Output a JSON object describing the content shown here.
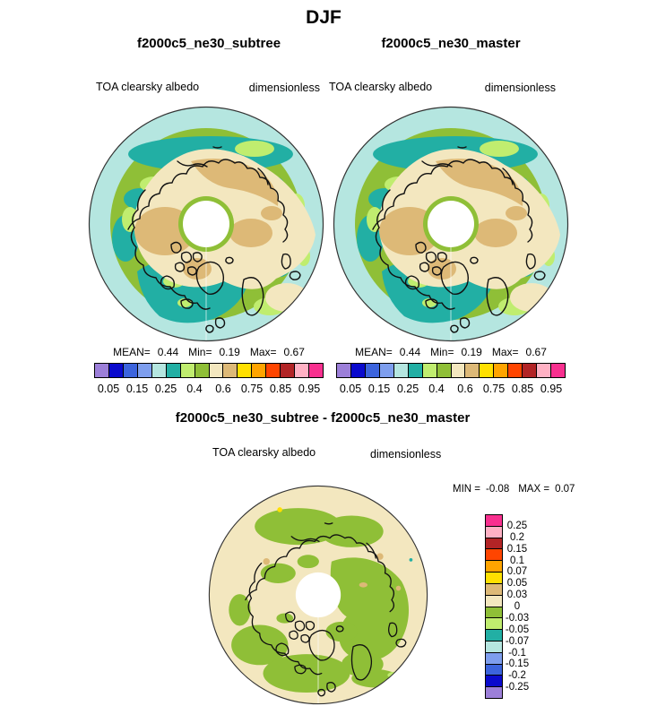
{
  "figure_title": "DJF",
  "top_panels": [
    {
      "title": "f2000c5_ne30_subtree",
      "var_label": "TOA clearsky albedo",
      "units_label": "dimensionless",
      "stats": {
        "mean_label": "MEAN=",
        "mean_value": "0.44",
        "min_label": "Min=",
        "min_value": "0.19",
        "max_label": "Max=",
        "max_value": "0.67"
      }
    },
    {
      "title": "f2000c5_ne30_master",
      "var_label": "TOA clearsky albedo",
      "units_label": "dimensionless",
      "stats": {
        "mean_label": "MEAN=",
        "mean_value": "0.44",
        "min_label": "Min=",
        "min_value": "0.19",
        "max_label": "Max=",
        "max_value": "0.67"
      }
    }
  ],
  "albedo_colorbar": {
    "colors": [
      "#9C7FD9",
      "#0A0ACD",
      "#3C64DD",
      "#7E9EEE",
      "#B5E6E0",
      "#22AFA4",
      "#C0ED6F",
      "#8FBF37",
      "#F3E7BF",
      "#DDB977",
      "#FFE000",
      "#FFA400",
      "#FF4500",
      "#B22426",
      "#FFB1C4",
      "#F8308F"
    ],
    "tick_labels": [
      "0.05",
      "0.15",
      "0.25",
      "0.4",
      "0.6",
      "0.75",
      "0.85",
      "0.95"
    ],
    "tick_positions": [
      1,
      3,
      5,
      7,
      9,
      11,
      13,
      15
    ]
  },
  "diff_panel": {
    "title": "f2000c5_ne30_subtree - f2000c5_ne30_master",
    "var_label": "TOA clearsky albedo",
    "units_label": "dimensionless",
    "min_label": "MIN =",
    "min_value": "-0.08",
    "max_label": "MAX =",
    "max_value": "0.07"
  },
  "diff_colorbar": {
    "colors": [
      "#F8308F",
      "#FFB1C4",
      "#B22426",
      "#FF4500",
      "#FFA400",
      "#FFE000",
      "#DDB977",
      "#F3E7BF",
      "#8FBF37",
      "#C0ED6F",
      "#22AFA4",
      "#B5E6E0",
      "#7E9EEE",
      "#3C64DD",
      "#0A0ACD",
      "#9C7FD9"
    ],
    "tick_labels": [
      "0.25",
      "0.2",
      "0.15",
      "0.1",
      "0.07",
      "0.05",
      "0.03",
      "0",
      "-0.03",
      "-0.05",
      "-0.07",
      "-0.1",
      "-0.15",
      "-0.2",
      "-0.25"
    ]
  },
  "chart_data": {
    "type": "heatmap",
    "title": "DJF",
    "variable": "TOA clearsky albedo",
    "units": "dimensionless",
    "projection": "north polar stereographic",
    "panels": [
      {
        "name": "f2000c5_ne30_subtree",
        "mean": 0.44,
        "min": 0.19,
        "max": 0.67
      },
      {
        "name": "f2000c5_ne30_master",
        "mean": 0.44,
        "min": 0.19,
        "max": 0.67
      },
      {
        "name": "f2000c5_ne30_subtree - f2000c5_ne30_master",
        "min": -0.08,
        "max": 0.07
      }
    ],
    "albedo_contour_levels": [
      0.05,
      0.1,
      0.15,
      0.2,
      0.25,
      0.3,
      0.4,
      0.5,
      0.6,
      0.7,
      0.75,
      0.8,
      0.85,
      0.9,
      0.95
    ],
    "albedo_labeled_ticks": [
      0.05,
      0.15,
      0.25,
      0.4,
      0.6,
      0.75,
      0.85,
      0.95
    ],
    "diff_contour_levels": [
      -0.25,
      -0.2,
      -0.15,
      -0.1,
      -0.07,
      -0.05,
      -0.03,
      0,
      0.03,
      0.05,
      0.07,
      0.1,
      0.15,
      0.2,
      0.25
    ],
    "legend": {
      "top": "horizontal 16-color bar below each map",
      "diff": "vertical 16-color bar right of difference map"
    }
  }
}
